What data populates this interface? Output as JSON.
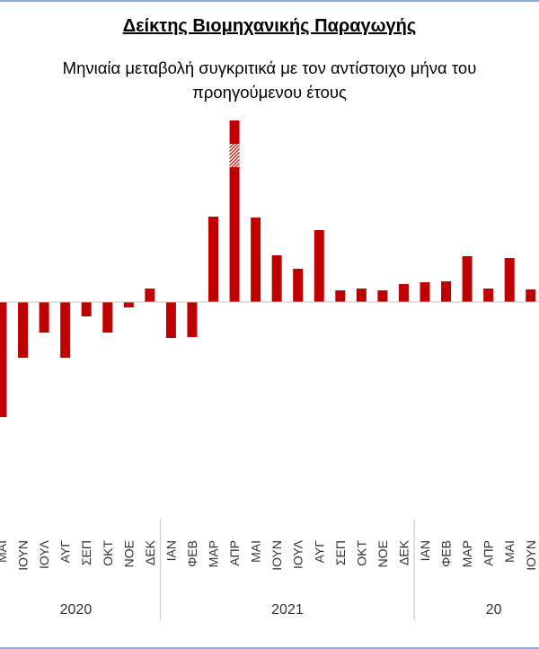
{
  "chart_data": {
    "type": "bar",
    "title": "Δείκτης Βιομηχανικής Παραγωγής",
    "subtitle_lines": [
      "Μηνιαία μεταβολή συγκριτικά με τον αντίστοιχο μήνα του",
      "προηγούμενου έτους"
    ],
    "categories": [
      "ΜΑΙ",
      "ΙΟΥΝ",
      "ΙΟΥΛ",
      "ΑΥΓ",
      "ΣΕΠ",
      "ΟΚΤ",
      "ΝΟΕ",
      "ΔΕΚ",
      "ΙΑΝ",
      "ΦΕΒ",
      "ΜΑΡ",
      "ΑΠΡ",
      "ΜΑΙ",
      "ΙΟΥΝ",
      "ΙΟΥΛ",
      "ΑΥΓ",
      "ΣΕΠ",
      "ΟΚΤ",
      "ΝΟΕ",
      "ΔΕΚ",
      "ΙΑΝ",
      "ΦΕΒ",
      "ΜΑΡ",
      "ΑΠΡ",
      "ΜΑΙ",
      "ΙΟΥΝ"
    ],
    "groups": [
      {
        "label": "2020",
        "start": 0,
        "end": 7
      },
      {
        "label": "2021",
        "start": 8,
        "end": 19
      },
      {
        "label": "20",
        "start": 20,
        "end": 25
      }
    ],
    "values": [
      -128,
      -62,
      -34,
      -62,
      -16,
      -34,
      -6,
      15,
      -40,
      -39,
      95,
      202,
      94,
      52,
      37,
      80,
      13,
      15,
      13,
      20,
      22,
      23,
      51,
      15,
      49,
      14
    ],
    "hatched_segment": {
      "index": 11,
      "from": 150,
      "to": 176
    },
    "ylim": [
      -240,
      210
    ],
    "grid": false,
    "colors": {
      "bar": "#c00000",
      "axis": "#bfbfbf",
      "frame": "#8eaadb"
    }
  }
}
